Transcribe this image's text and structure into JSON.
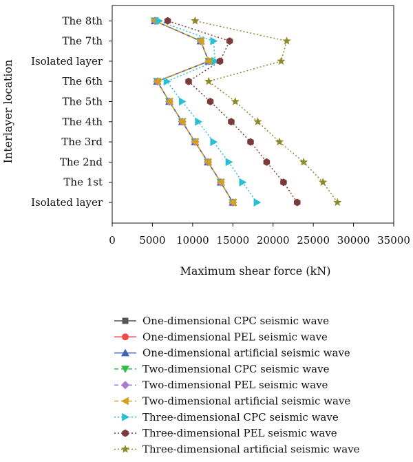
{
  "chart_data": {
    "type": "line",
    "orientation": "horizontal",
    "xlabel": "Maximum shear force (kN)",
    "ylabel": "Interlayer location",
    "xlim": [
      0,
      35000
    ],
    "xticks": [
      0,
      5000,
      10000,
      15000,
      20000,
      25000,
      30000,
      35000
    ],
    "categories": [
      "Isolated layer",
      "The 1st",
      "The 2nd",
      "The 3rd",
      "The 4th",
      "The 5th",
      "The 6th",
      "Isolated layer",
      "The 7th",
      "The 8th"
    ],
    "grid": false,
    "legend_position": "bottom",
    "series": [
      {
        "name": "One-dimensional CPC seismic wave",
        "color": "#555555",
        "marker": "square",
        "line": "solid",
        "values": [
          15000,
          13500,
          11900,
          10300,
          8700,
          7100,
          5600,
          12000,
          11000,
          5300
        ]
      },
      {
        "name": "One-dimensional PEL seismic wave",
        "color": "#f04a4a",
        "marker": "circle",
        "line": "solid",
        "values": [
          15000,
          13500,
          11900,
          10300,
          8700,
          7100,
          5600,
          12000,
          11000,
          5300
        ]
      },
      {
        "name": "One-dimensional artificial seismic wave",
        "color": "#3f62b5",
        "marker": "triangle-up",
        "line": "solid",
        "values": [
          15000,
          13500,
          11900,
          10300,
          8700,
          7100,
          5600,
          12000,
          11000,
          5300
        ]
      },
      {
        "name": "Two-dimensional CPC seismic wave",
        "color": "#2ebd4a",
        "marker": "triangle-down",
        "line": "dashed",
        "values": [
          15000,
          13500,
          11900,
          10300,
          8700,
          7100,
          5600,
          12000,
          11000,
          5300
        ]
      },
      {
        "name": "Two-dimensional PEL seismic wave",
        "color": "#a87ad0",
        "marker": "diamond",
        "line": "dashed",
        "values": [
          15000,
          13500,
          11900,
          10300,
          8700,
          7100,
          5600,
          12000,
          11000,
          5300
        ]
      },
      {
        "name": "Two-dimensional artificial seismic wave",
        "color": "#d3a21c",
        "marker": "triangle-left",
        "line": "dashed",
        "values": [
          15000,
          13500,
          11900,
          10300,
          8700,
          7100,
          5600,
          12000,
          11000,
          5300
        ]
      },
      {
        "name": "Three-dimensional CPC seismic wave",
        "color": "#2bbfd4",
        "marker": "triangle-right",
        "line": "dotted",
        "values": [
          18000,
          16200,
          14500,
          12600,
          10700,
          8700,
          6800,
          12800,
          12600,
          5800
        ]
      },
      {
        "name": "Three-dimensional PEL seismic wave",
        "color": "#7a3b3b",
        "marker": "hexagon",
        "line": "dotted",
        "values": [
          23000,
          21300,
          19200,
          17200,
          14800,
          12200,
          9500,
          13400,
          14600,
          6900
        ]
      },
      {
        "name": "Three-dimensional artificial seismic wave",
        "color": "#8c8a2a",
        "marker": "star",
        "line": "dotted",
        "values": [
          28000,
          26200,
          23800,
          20800,
          18100,
          15300,
          12000,
          21000,
          21700,
          10300
        ]
      }
    ]
  }
}
